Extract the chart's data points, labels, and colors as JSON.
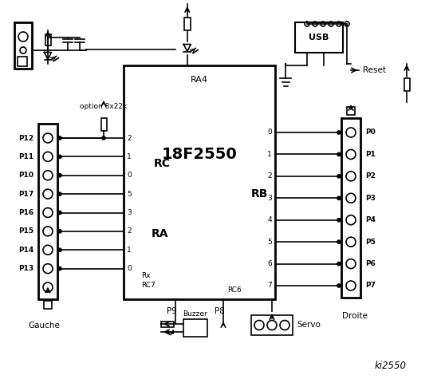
{
  "bg_color": "white",
  "title": "ki2550",
  "chip_label": "18F2550",
  "chip_sublabel": "RA4",
  "rc_label": "RC",
  "ra_label": "RA",
  "rb_label": "RB",
  "left_pins": [
    "P12",
    "P11",
    "P10",
    "P17",
    "P16",
    "P15",
    "P14",
    "P13"
  ],
  "right_pins": [
    "P0",
    "P1",
    "P2",
    "P3",
    "P4",
    "P5",
    "P6",
    "P7"
  ],
  "rc_nums": [
    "2",
    "1",
    "0"
  ],
  "ra_nums": [
    "5",
    "3",
    "2",
    "1",
    "0"
  ],
  "rb_nums": [
    "0",
    "1",
    "2",
    "3",
    "4",
    "5",
    "6",
    "7"
  ],
  "option_text": "option 8x22k",
  "gauche_text": "Gauche",
  "droite_text": "Droite",
  "servo_text": "Servo",
  "buzzer_text": "Buzzer",
  "usb_text": "USB",
  "reset_text": "Reset",
  "rx_text": "Rx",
  "rc7_text": "RC7",
  "rc6_text": "RC6",
  "p8_text": "P8",
  "p9_text": "P9"
}
